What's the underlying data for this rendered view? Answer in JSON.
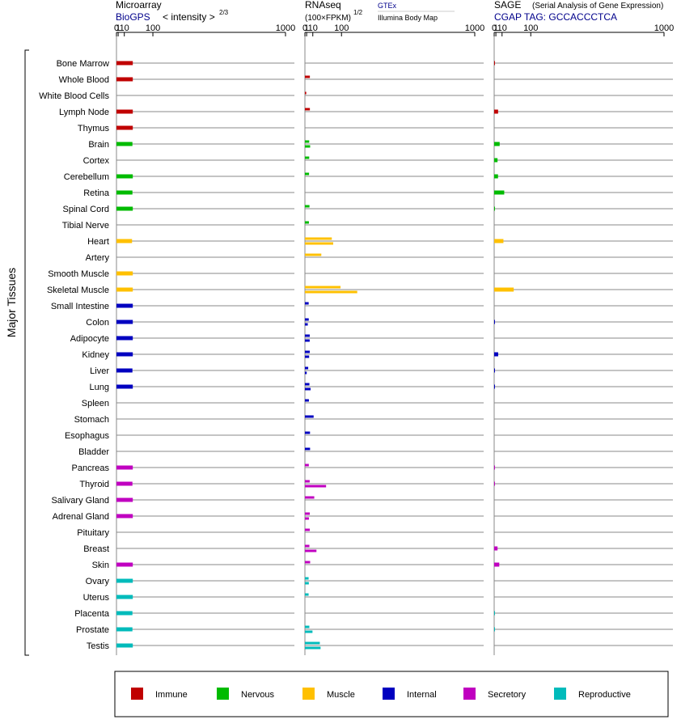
{
  "colors": {
    "Immune": "#c00000",
    "Nervous": "#00bb00",
    "Muscle": "#ffc000",
    "Internal": "#0000c0",
    "Secretory": "#c000c0",
    "Reproductive": "#00bbbb",
    "source_link": "#00008b",
    "grid": "#888888"
  },
  "side_label": "Major Tissues",
  "panels": {
    "microarray": {
      "title": "Microarray",
      "source": "BioGPS",
      "unit_prefix": "< intensity >",
      "unit_exp": "2/3",
      "ticks": [
        "0",
        "1",
        "10",
        "100",
        "1000"
      ]
    },
    "rnaseq": {
      "title": "RNAseq",
      "unit_main": "(100×FPKM)",
      "unit_exp": "1/2",
      "source_1": "GTEx",
      "source_2": "Illumina Body Map",
      "ticks": [
        "0",
        "1",
        "10",
        "100",
        "1000"
      ]
    },
    "sage": {
      "title": "SAGE",
      "subtitle": "(Serial Analysis of Gene Expression)",
      "source": "CGAP TAG: GCCACCCTCA",
      "ticks": [
        "0",
        "1",
        "10",
        "100",
        "1000"
      ]
    }
  },
  "legend": [
    "Immune",
    "Nervous",
    "Muscle",
    "Internal",
    "Secretory",
    "Reproductive"
  ],
  "chart_data": {
    "type": "bar",
    "orientation": "horizontal",
    "scale": "power 2/3 (0 to 1000)",
    "categories": [
      "Bone Marrow",
      "Whole Blood",
      "White Blood Cells",
      "Lymph Node",
      "Thymus",
      "Brain",
      "Cortex",
      "Cerebellum",
      "Retina",
      "Spinal Cord",
      "Tibial Nerve",
      "Heart",
      "Artery",
      "Smooth Muscle",
      "Skeletal Muscle",
      "Small Intestine",
      "Colon",
      "Adipocyte",
      "Kidney",
      "Liver",
      "Lung",
      "Spleen",
      "Stomach",
      "Esophagus",
      "Bladder",
      "Pancreas",
      "Thyroid",
      "Salivary Gland",
      "Adrenal Gland",
      "Pituitary",
      "Breast",
      "Skin",
      "Ovary",
      "Uterus",
      "Placenta",
      "Prostate",
      "Testis"
    ],
    "groups": [
      "Immune",
      "Immune",
      "Immune",
      "Immune",
      "Immune",
      "Nervous",
      "Nervous",
      "Nervous",
      "Nervous",
      "Nervous",
      "Nervous",
      "Muscle",
      "Muscle",
      "Muscle",
      "Muscle",
      "Internal",
      "Internal",
      "Internal",
      "Internal",
      "Internal",
      "Internal",
      "Internal",
      "Internal",
      "Internal",
      "Internal",
      "Secretory",
      "Secretory",
      "Secretory",
      "Secretory",
      "Secretory",
      "Secretory",
      "Secretory",
      "Reproductive",
      "Reproductive",
      "Reproductive",
      "Reproductive",
      "Reproductive"
    ],
    "microarray": [
      30,
      30,
      null,
      30,
      30,
      29,
      null,
      30,
      29,
      30,
      null,
      28,
      null,
      30,
      30,
      30,
      30,
      30,
      30,
      29,
      30,
      null,
      null,
      null,
      null,
      30,
      29,
      30,
      30,
      null,
      null,
      30,
      30,
      30,
      29,
      29,
      30
    ],
    "rnaseq_gtex": [
      null,
      5,
      null,
      5,
      null,
      4,
      4,
      3.8,
      null,
      4.4,
      3.6,
      63,
      30,
      null,
      96,
      3.3,
      3.4,
      4.8,
      4.8,
      2.7,
      4.3,
      3.6,
      11.6,
      5.2,
      5.3,
      3.5,
      4.7,
      12.9,
      4.9,
      4.9,
      4.3,
      5.4,
      3.2,
      3.2,
      null,
      4.2,
      26
    ],
    "rnaseq_bodymap": [
      null,
      null,
      0.7,
      null,
      null,
      5.4,
      null,
      null,
      null,
      null,
      null,
      68,
      null,
      null,
      171,
      null,
      2.2,
      4.7,
      3.9,
      1.1,
      6.1,
      null,
      null,
      null,
      null,
      null,
      44,
      null,
      3.6,
      null,
      17.7,
      null,
      3.5,
      null,
      null,
      9.4,
      28
    ],
    "sage": [
      0.05,
      null,
      null,
      3.5,
      null,
      5.8,
      2.8,
      3.4,
      14.4,
      0.1,
      null,
      12.7,
      null,
      null,
      39,
      null,
      0.1,
      null,
      3.6,
      0.1,
      0.1,
      null,
      null,
      null,
      null,
      0.1,
      0.1,
      null,
      null,
      null,
      2.8,
      5.2,
      null,
      null,
      0.05,
      0.05,
      null
    ]
  }
}
